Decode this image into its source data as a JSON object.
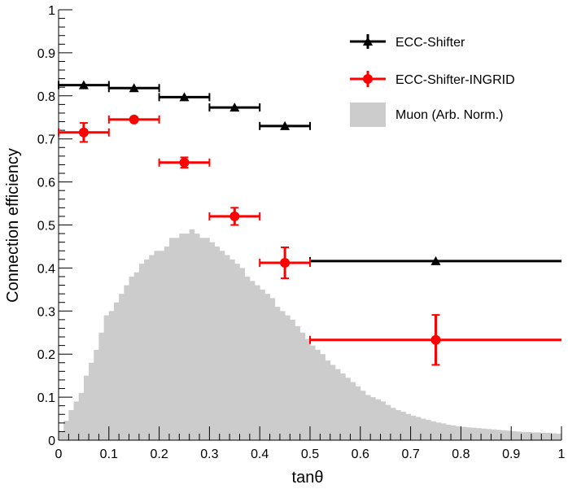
{
  "chart_data": {
    "type": "scatter",
    "title": "",
    "xlabel": "tanθ",
    "ylabel": "Connection efficiency",
    "xlim": [
      0,
      1
    ],
    "ylim": [
      0,
      1
    ],
    "xticks": [
      0,
      0.1,
      0.2,
      0.3,
      0.4,
      0.5,
      0.6,
      0.7,
      0.8,
      0.9,
      1
    ],
    "yticks": [
      0,
      0.1,
      0.2,
      0.3,
      0.4,
      0.5,
      0.6,
      0.7,
      0.8,
      0.9,
      1
    ],
    "xtick_labels": [
      "0",
      "0.1",
      "0.2",
      "0.3",
      "0.4",
      "0.5",
      "0.6",
      "0.7",
      "0.8",
      "0.9",
      "1"
    ],
    "ytick_labels": [
      "0",
      "0.1",
      "0.2",
      "0.3",
      "0.4",
      "0.5",
      "0.6",
      "0.7",
      "0.8",
      "0.9",
      "1"
    ],
    "legend_position": "top-right",
    "series": [
      {
        "name": "ECC-Shifter",
        "color": "#000000",
        "marker": "triangle",
        "points": [
          {
            "x": 0.05,
            "y": 0.825,
            "xlo": 0.0,
            "xhi": 0.1,
            "yerr": 0.004
          },
          {
            "x": 0.15,
            "y": 0.818,
            "xlo": 0.1,
            "xhi": 0.2,
            "yerr": 0.004
          },
          {
            "x": 0.25,
            "y": 0.797,
            "xlo": 0.2,
            "xhi": 0.3,
            "yerr": 0.004
          },
          {
            "x": 0.35,
            "y": 0.773,
            "xlo": 0.3,
            "xhi": 0.4,
            "yerr": 0.005
          },
          {
            "x": 0.45,
            "y": 0.73,
            "xlo": 0.4,
            "xhi": 0.5,
            "yerr": 0.005
          },
          {
            "x": 0.75,
            "y": 0.416,
            "xlo": 0.5,
            "xhi": 1.0,
            "yerr": 0.005
          }
        ]
      },
      {
        "name": "ECC-Shifter-INGRID",
        "color": "#ff0000",
        "marker": "circle",
        "points": [
          {
            "x": 0.05,
            "y": 0.715,
            "xlo": 0.0,
            "xhi": 0.1,
            "yerr": 0.022
          },
          {
            "x": 0.15,
            "y": 0.745,
            "xlo": 0.1,
            "xhi": 0.2,
            "yerr": 0.006
          },
          {
            "x": 0.25,
            "y": 0.645,
            "xlo": 0.2,
            "xhi": 0.3,
            "yerr": 0.012
          },
          {
            "x": 0.35,
            "y": 0.52,
            "xlo": 0.3,
            "xhi": 0.4,
            "yerr": 0.02
          },
          {
            "x": 0.45,
            "y": 0.412,
            "xlo": 0.4,
            "xhi": 0.5,
            "yerr": 0.036
          },
          {
            "x": 0.75,
            "y": 0.233,
            "xlo": 0.5,
            "xhi": 1.0,
            "yerr": 0.058
          }
        ]
      }
    ],
    "histogram": {
      "name": "Muon (Arb. Norm.)",
      "color": "#cccccc",
      "bin_width": 0.01,
      "x_start": 0.0,
      "values": [
        0.02,
        0.045,
        0.07,
        0.09,
        0.11,
        0.15,
        0.18,
        0.21,
        0.25,
        0.29,
        0.3,
        0.32,
        0.34,
        0.36,
        0.38,
        0.39,
        0.41,
        0.42,
        0.43,
        0.44,
        0.44,
        0.45,
        0.47,
        0.47,
        0.48,
        0.48,
        0.49,
        0.48,
        0.47,
        0.47,
        0.46,
        0.45,
        0.44,
        0.43,
        0.42,
        0.41,
        0.4,
        0.38,
        0.37,
        0.36,
        0.35,
        0.34,
        0.33,
        0.31,
        0.3,
        0.29,
        0.28,
        0.265,
        0.25,
        0.235,
        0.22,
        0.21,
        0.2,
        0.185,
        0.175,
        0.165,
        0.155,
        0.145,
        0.135,
        0.125,
        0.115,
        0.105,
        0.1,
        0.095,
        0.09,
        0.082,
        0.075,
        0.07,
        0.066,
        0.061,
        0.057,
        0.054,
        0.05,
        0.047,
        0.044,
        0.041,
        0.039,
        0.036,
        0.034,
        0.032,
        0.031,
        0.03,
        0.029,
        0.028,
        0.027,
        0.026,
        0.025,
        0.024,
        0.023,
        0.022,
        0.021,
        0.02,
        0.019,
        0.019,
        0.018,
        0.018,
        0.017,
        0.017,
        0.016,
        0.015
      ]
    },
    "legend": [
      {
        "label": "ECC-Shifter",
        "style": "triangle-errorbar",
        "color": "#000000"
      },
      {
        "label": "ECC-Shifter-INGRID",
        "style": "circle-errorbar",
        "color": "#ff0000"
      },
      {
        "label": "Muon (Arb. Norm.)",
        "style": "fill-box",
        "color": "#cccccc"
      }
    ]
  }
}
